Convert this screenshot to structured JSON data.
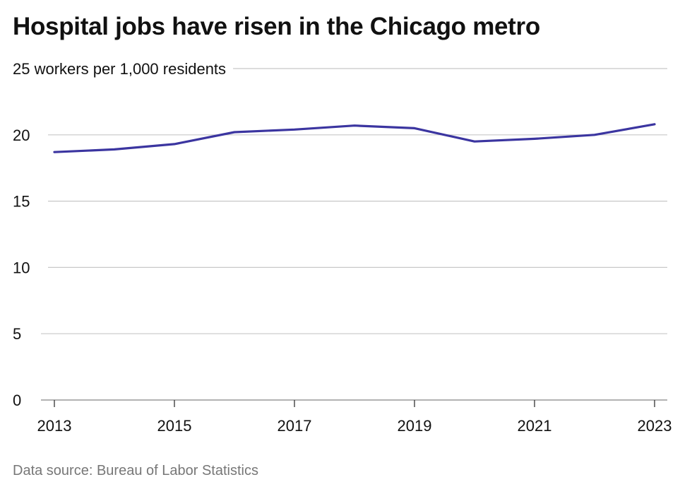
{
  "chart_data": {
    "type": "line",
    "title": "Hospital jobs have risen in the Chicago metro",
    "ylabel_unit": "workers per 1,000 residents",
    "x": [
      2013,
      2014,
      2015,
      2016,
      2017,
      2018,
      2019,
      2020,
      2021,
      2022,
      2023
    ],
    "series": [
      {
        "values": [
          18.7,
          18.9,
          19.3,
          20.2,
          20.4,
          20.7,
          20.5,
          19.5,
          19.7,
          20.0,
          20.8
        ]
      }
    ],
    "xticks": [
      "2013",
      "2015",
      "2017",
      "2019",
      "2021",
      "2023"
    ],
    "yticks": [
      0,
      5,
      10,
      15,
      20,
      25
    ],
    "ytick_labels": [
      "0",
      "5",
      "10",
      "15",
      "20",
      "25"
    ],
    "top_tick_label": "25 workers per 1,000 residents",
    "xlim": [
      2013,
      2023
    ],
    "ylim": [
      0,
      25
    ],
    "grid": "horizontal",
    "line_color": "#3b35a0",
    "grid_color": "#c8c8c8"
  },
  "source": "Data source: Bureau of Labor Statistics"
}
